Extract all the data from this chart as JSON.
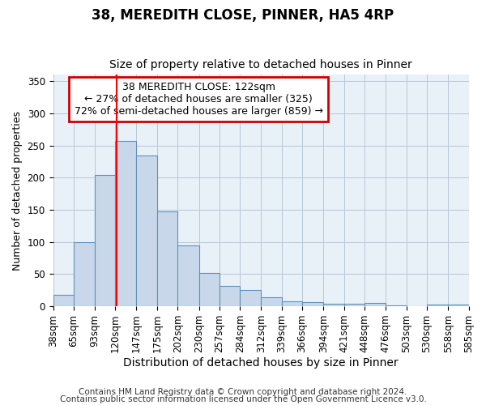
{
  "title1": "38, MEREDITH CLOSE, PINNER, HA5 4RP",
  "title2": "Size of property relative to detached houses in Pinner",
  "xlabel": "Distribution of detached houses by size in Pinner",
  "ylabel": "Number of detached properties",
  "bin_edges": [
    38,
    65,
    93,
    120,
    147,
    175,
    202,
    230,
    257,
    284,
    312,
    339,
    366,
    394,
    421,
    448,
    476,
    503,
    530,
    558,
    585
  ],
  "bar_heights": [
    18,
    100,
    204,
    257,
    235,
    148,
    95,
    52,
    32,
    25,
    14,
    8,
    6,
    4,
    4,
    5,
    2,
    0,
    3,
    3
  ],
  "bar_color": "#c8d8ea",
  "bar_edge_color": "#6090b8",
  "grid_color": "#b8c8d8",
  "background_color": "#ffffff",
  "axes_background_color": "#e8f0f8",
  "red_line_x": 122,
  "annotation_text": "38 MEREDITH CLOSE: 122sqm\n← 27% of detached houses are smaller (325)\n72% of semi-detached houses are larger (859) →",
  "annotation_box_color": "#ffffff",
  "annotation_box_edge_color": "#cc0000",
  "ylim": [
    0,
    360
  ],
  "yticks": [
    0,
    50,
    100,
    150,
    200,
    250,
    300,
    350
  ],
  "footer1": "Contains HM Land Registry data © Crown copyright and database right 2024.",
  "footer2": "Contains public sector information licensed under the Open Government Licence v3.0.",
  "title1_fontsize": 12,
  "title2_fontsize": 10,
  "xlabel_fontsize": 10,
  "ylabel_fontsize": 9,
  "tick_fontsize": 8.5,
  "annotation_fontsize": 9,
  "footer_fontsize": 7.5
}
